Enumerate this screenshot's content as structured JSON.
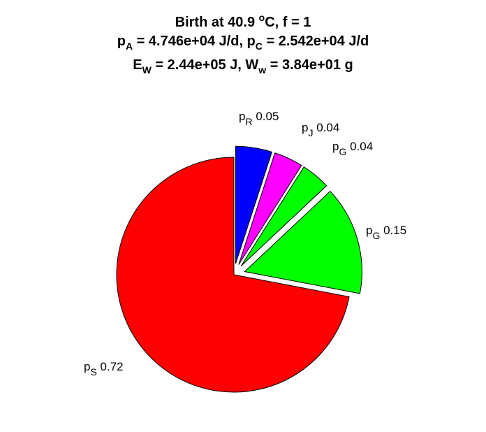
{
  "title": {
    "line1": {
      "pre": "Birth at 40.9 ",
      "sup": "o",
      "post": "C, f = 1"
    },
    "line2": {
      "a": "p",
      "a_sub": "A",
      "b": " = 4.746e+04 J/d, p",
      "b_sub": "C",
      "c": " = 2.542e+04 J/d"
    },
    "line3": {
      "a": "E",
      "a_sub": "W",
      "b": " = 2.44e+05 J, W",
      "b_sub": "w",
      "c": " = 3.84e+01 g"
    }
  },
  "chart_data": {
    "type": "pie",
    "exploded": true,
    "slices": [
      {
        "sym": "p",
        "sub": "S",
        "value": 0.72,
        "color": "#ff0000"
      },
      {
        "sym": "p",
        "sub": "R",
        "value": 0.05,
        "color": "#0000ff"
      },
      {
        "sym": "p",
        "sub": "J",
        "value": 0.04,
        "color": "#ff00ff"
      },
      {
        "sym": "p",
        "sub": "G",
        "value": 0.04,
        "color": "#00ff00"
      },
      {
        "sym": "p",
        "sub": "G",
        "value": 0.15,
        "color": "#00ff00"
      }
    ],
    "value_labels": [
      "0.72",
      "0.05",
      "0.04",
      "0.04",
      "0.15"
    ]
  }
}
